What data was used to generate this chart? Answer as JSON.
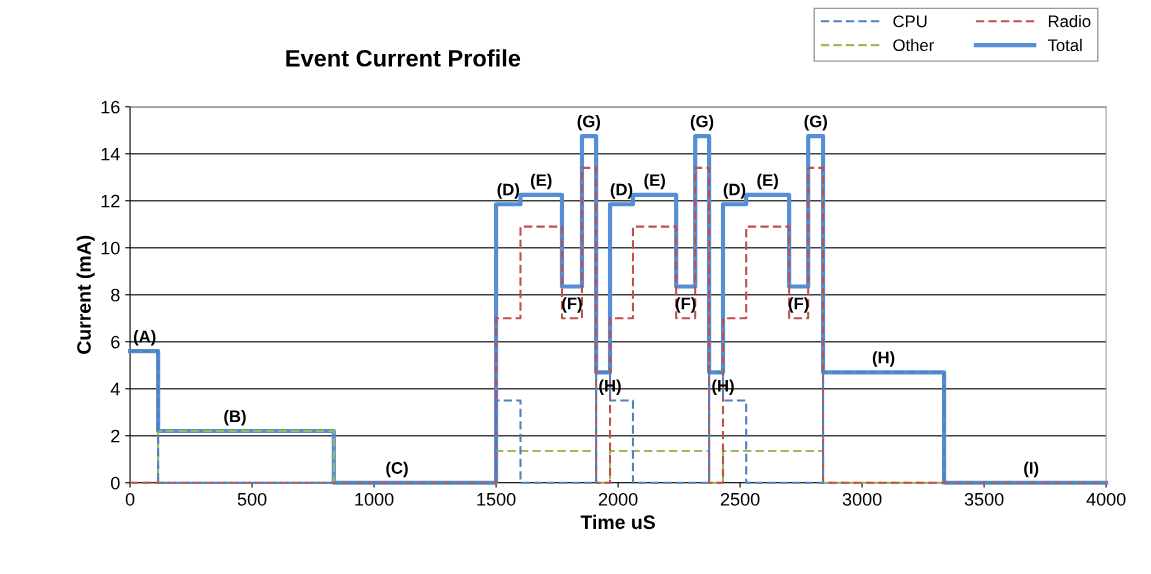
{
  "chart_data": {
    "type": "step",
    "title": "Event Current Profile",
    "xlabel": "Time uS",
    "ylabel": "Current (mA)",
    "x": [
      0,
      115,
      835,
      1500,
      1600,
      1770,
      1852,
      1910,
      1967,
      2061,
      2238,
      2316,
      2373,
      2430,
      2525,
      2701,
      2779,
      2840,
      3336,
      4000
    ],
    "series": [
      {
        "name": "CPU",
        "color": "#4f81bd",
        "line_style": "dashed",
        "values": [
          5.6,
          0,
          0,
          3.5,
          0,
          0,
          0,
          4.7,
          3.5,
          0,
          0,
          0,
          4.7,
          3.5,
          0,
          0,
          0,
          4.7,
          0,
          0
        ]
      },
      {
        "name": "Radio",
        "color": "#c0504d",
        "line_style": "dashed",
        "values": [
          0,
          0,
          0,
          7,
          10.9,
          7,
          13.4,
          0,
          7,
          10.9,
          7,
          13.4,
          0,
          7,
          10.9,
          7,
          13.4,
          0,
          0,
          0
        ]
      },
      {
        "name": "Other",
        "color": "#9bbb59",
        "line_style": "dashed",
        "values": [
          0,
          2.2,
          0,
          1.35,
          1.35,
          1.35,
          1.35,
          0,
          1.35,
          1.35,
          1.35,
          1.35,
          0,
          1.35,
          1.35,
          1.35,
          1.35,
          0,
          0,
          0
        ]
      },
      {
        "name": "Total",
        "color": "#558ed5",
        "line_style": "solid",
        "values": [
          5.6,
          2.2,
          0,
          11.85,
          12.25,
          8.35,
          14.75,
          4.7,
          11.85,
          12.25,
          8.35,
          14.75,
          4.7,
          11.85,
          12.25,
          8.35,
          14.75,
          4.7,
          0,
          0
        ]
      }
    ],
    "xlim": [
      0,
      4000
    ],
    "xticks": [
      0,
      500,
      1000,
      1500,
      2000,
      2500,
      3000,
      3500,
      4000
    ],
    "ylim": [
      0,
      16
    ],
    "yticks": [
      0,
      2,
      4,
      6,
      8,
      10,
      12,
      14,
      16
    ],
    "grid": "y",
    "legend": "top right",
    "annotations": [
      {
        "text": "(A)",
        "x": 60,
        "y": 5.6
      },
      {
        "text": "(B)",
        "x": 430,
        "y": 2.2
      },
      {
        "text": "(C)",
        "x": 1094,
        "y": 0
      },
      {
        "text": "(D)",
        "x": 1550,
        "y": 11.85
      },
      {
        "text": "(E)",
        "x": 1685,
        "y": 12.25
      },
      {
        "text": "(F)",
        "x": 1811,
        "y": 7
      },
      {
        "text": "(G)",
        "x": 1880,
        "y": 14.75
      },
      {
        "text": "(H)",
        "x": 1967,
        "y": 3.5
      },
      {
        "text": "(D)",
        "x": 2014,
        "y": 11.85
      },
      {
        "text": "(E)",
        "x": 2150,
        "y": 12.25
      },
      {
        "text": "(F)",
        "x": 2277,
        "y": 7
      },
      {
        "text": "(G)",
        "x": 2344,
        "y": 14.75
      },
      {
        "text": "(H)",
        "x": 2430,
        "y": 3.5
      },
      {
        "text": "(D)",
        "x": 2477,
        "y": 11.85
      },
      {
        "text": "(E)",
        "x": 2613,
        "y": 12.25
      },
      {
        "text": "(F)",
        "x": 2740,
        "y": 7
      },
      {
        "text": "(G)",
        "x": 2810,
        "y": 14.75
      },
      {
        "text": "(H)",
        "x": 3088,
        "y": 4.7
      },
      {
        "text": "(I)",
        "x": 3693,
        "y": 0
      }
    ]
  }
}
